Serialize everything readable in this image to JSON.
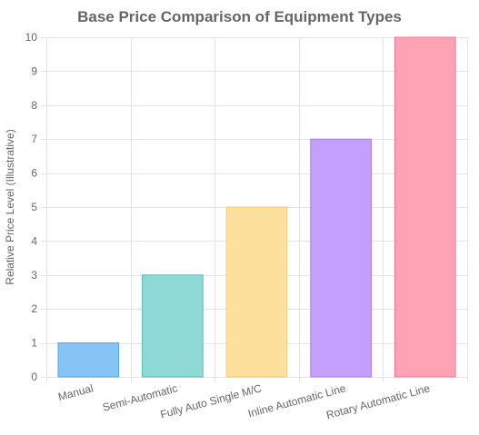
{
  "chart_data": {
    "type": "bar",
    "title": "Base Price Comparison of Equipment Types",
    "xlabel": "",
    "ylabel": "Relative Price Level (Illustrative)",
    "categories": [
      "Manual",
      "Semi-Automatic",
      "Fully Auto Single M/C",
      "Inline Automatic Line",
      "Rotary Automatic Line"
    ],
    "values": [
      1,
      3,
      5,
      7,
      10
    ],
    "ylim": [
      0,
      10
    ],
    "yticks": [
      0,
      1,
      2,
      3,
      4,
      5,
      6,
      7,
      8,
      9,
      10
    ],
    "grid": true,
    "legend": "none",
    "colors": {
      "fills": [
        "#85c4f4",
        "#8fd9d6",
        "#fde09b",
        "#c4a0fd",
        "#fea3b6"
      ],
      "borders": [
        "#4ea7e8",
        "#55bfbd",
        "#f7cb69",
        "#a77afd",
        "#fd7595"
      ],
      "grid": "#e5e5e5",
      "text": "#666666",
      "title": "#666666"
    }
  }
}
